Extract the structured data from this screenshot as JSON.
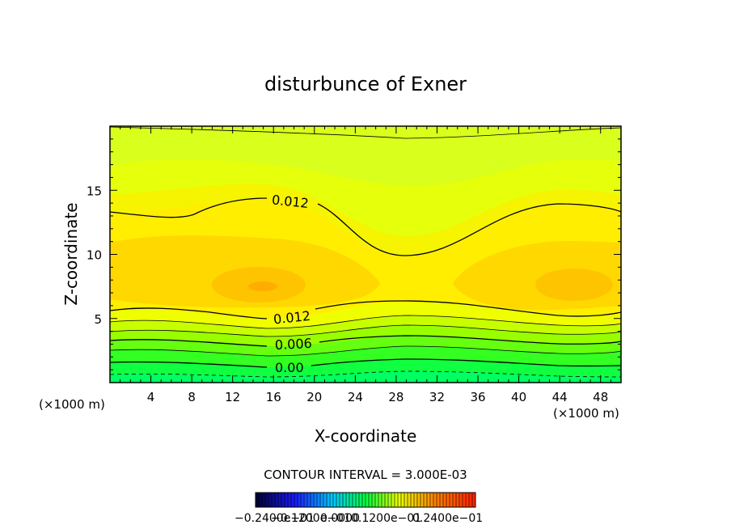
{
  "chart_data": {
    "type": "contour",
    "title": "disturbunce of Exner",
    "xlabel": "X-coordinate",
    "ylabel": "Z-coordinate",
    "x_unit": "(×1000 m)",
    "y_unit": "(×1000 m)",
    "xlim": [
      0,
      50
    ],
    "ylim": [
      0,
      20
    ],
    "xticks": [
      4,
      8,
      12,
      16,
      20,
      24,
      28,
      32,
      36,
      40,
      44,
      48
    ],
    "yticks": [
      5,
      10,
      15
    ],
    "contour_interval_text": "CONTOUR INTERVAL = 3.000E-03",
    "contour_labels": [
      {
        "text": "0.012",
        "x": 16,
        "z": 14.3
      },
      {
        "text": "0.012",
        "x": 16,
        "z": 5.2
      },
      {
        "text": "0.006",
        "x": 16,
        "z": 3.0
      },
      {
        "text": "0.00",
        "x": 16,
        "z": 1.3
      }
    ],
    "colorbar_labels": [
      "−0.2400e−01",
      "−0.1200e−01",
      "0.0000",
      "0.1200e−01",
      "0.2400e−01"
    ],
    "colors": {
      "background_top": "#d9ff1c",
      "upper": "#e8ff00",
      "mid": "#ffee00",
      "core": "#ffd200",
      "max": "#ffb000",
      "low_green": "#00ff40"
    }
  }
}
